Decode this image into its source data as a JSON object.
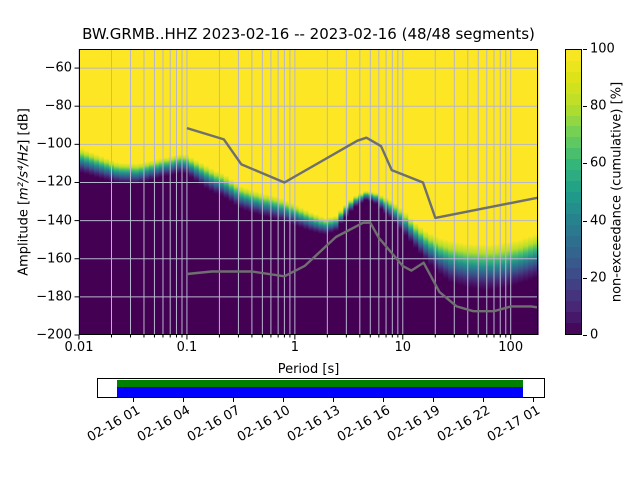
{
  "title": "BW.GRMB..HHZ   2023-02-16 -- 2023-02-16  (48/48 segments)",
  "axes": {
    "xlabel": "Period [s]",
    "ylabel_prefix": "Amplitude [",
    "ylabel_math": "m²/s⁴/Hz",
    "ylabel_suffix": "] [dB]"
  },
  "colorbar": {
    "label": "non-exceedance (cumulative) [%]",
    "ticks": [
      0,
      20,
      40,
      60,
      80,
      100
    ],
    "steps": 26
  },
  "timeline": {
    "tick_labels": [
      "02-16 01",
      "02-16 04",
      "02-16 07",
      "02-16 10",
      "02-16 13",
      "02-16 16",
      "02-16 19",
      "02-16 22",
      "02-17 01"
    ],
    "data_bar_color": "#008000",
    "extent_bar_color": "#0000ff"
  },
  "chart_data": {
    "type": "heatmap",
    "title": "BW.GRMB..HHZ   2023-02-16 -- 2023-02-16  (48/48 segments)",
    "xlabel": "Period [s]",
    "ylabel": "Amplitude [m²/s⁴/Hz] [dB]",
    "x_axis": {
      "scale": "log",
      "range": [
        0.01,
        179
      ],
      "major_ticks": [
        0.01,
        0.1,
        1,
        10,
        100
      ]
    },
    "y_axis": {
      "range": [
        -200,
        -50
      ],
      "major_ticks": [
        -200,
        -180,
        -160,
        -140,
        -120,
        -100,
        -80,
        -60
      ]
    },
    "grid": true,
    "colorbar_range": [
      0,
      100
    ],
    "colormap_anchors": [
      [
        0.0,
        "#440154"
      ],
      [
        0.1,
        "#482878"
      ],
      [
        0.2,
        "#3e4989"
      ],
      [
        0.3,
        "#31688e"
      ],
      [
        0.4,
        "#26828e"
      ],
      [
        0.5,
        "#1f9e89"
      ],
      [
        0.6,
        "#35b779"
      ],
      [
        0.7,
        "#6ece58"
      ],
      [
        0.8,
        "#b5de2b"
      ],
      [
        0.9,
        "#dde318"
      ],
      [
        1.0,
        "#fde725"
      ]
    ],
    "psd_distribution_note": "cumulative non-exceedance: 0% (dark) below band, 100% (yellow) above; points are [period_s, band_center_dB, band_halfwidth_dB]",
    "distribution_points": [
      [
        0.01,
        -108.0,
        6.5
      ],
      [
        0.015,
        -111.5,
        6.0
      ],
      [
        0.023,
        -115.0,
        5.5
      ],
      [
        0.035,
        -115.5,
        5.5
      ],
      [
        0.055,
        -112.5,
        5.0
      ],
      [
        0.08,
        -110.5,
        5.0
      ],
      [
        0.095,
        -109.8,
        5.0
      ],
      [
        0.14,
        -116.0,
        6.0
      ],
      [
        0.18,
        -119.5,
        6.0
      ],
      [
        0.22,
        -121.5,
        6.0
      ],
      [
        0.32,
        -128.0,
        6.0
      ],
      [
        0.5,
        -131.5,
        6.0
      ],
      [
        0.7,
        -133.5,
        6.0
      ],
      [
        1.0,
        -137.0,
        5.5
      ],
      [
        1.4,
        -140.5,
        5.0
      ],
      [
        1.9,
        -143.0,
        4.5
      ],
      [
        2.4,
        -141.5,
        4.0
      ],
      [
        2.8,
        -136.5,
        3.5
      ],
      [
        3.5,
        -130.5,
        3.0
      ],
      [
        4.5,
        -126.8,
        2.5
      ],
      [
        5.5,
        -127.8,
        2.8
      ],
      [
        6.5,
        -131.0,
        4.0
      ],
      [
        8.0,
        -134.5,
        5.0
      ],
      [
        10.0,
        -140.0,
        6.0
      ],
      [
        13.0,
        -147.5,
        6.5
      ],
      [
        17.0,
        -154.0,
        8.0
      ],
      [
        22.0,
        -158.5,
        9.5
      ],
      [
        28.0,
        -161.5,
        11.0
      ],
      [
        40.0,
        -163.5,
        11.5
      ],
      [
        60.0,
        -164.5,
        12.0
      ],
      [
        85.0,
        -163.5,
        12.0
      ],
      [
        120.0,
        -161.5,
        11.5
      ],
      [
        179.0,
        -158.0,
        11.5
      ]
    ],
    "noise_models": {
      "nhnm": [
        [
          0.1,
          -91.5
        ],
        [
          0.22,
          -97.4
        ],
        [
          0.32,
          -110.5
        ],
        [
          0.8,
          -120.0
        ],
        [
          3.8,
          -98.1
        ],
        [
          4.6,
          -96.5
        ],
        [
          6.3,
          -101.0
        ],
        [
          7.9,
          -113.5
        ],
        [
          15.4,
          -120.0
        ],
        [
          20.0,
          -138.6
        ],
        [
          179.0,
          -128.0
        ]
      ],
      "nlnm": [
        [
          0.1,
          -168.0
        ],
        [
          0.17,
          -166.7
        ],
        [
          0.4,
          -166.7
        ],
        [
          0.8,
          -169.2
        ],
        [
          1.24,
          -163.7
        ],
        [
          2.4,
          -148.6
        ],
        [
          4.3,
          -141.1
        ],
        [
          5.0,
          -141.1
        ],
        [
          6.0,
          -149.0
        ],
        [
          10.0,
          -163.8
        ],
        [
          12.0,
          -166.2
        ],
        [
          15.6,
          -162.1
        ],
        [
          21.9,
          -177.5
        ],
        [
          31.6,
          -185.0
        ],
        [
          45.0,
          -187.5
        ],
        [
          70.0,
          -187.5
        ],
        [
          101.0,
          -185.0
        ],
        [
          154.0,
          -185.0
        ],
        [
          179.0,
          -185.5
        ]
      ],
      "line_color": "#6f6f6f"
    }
  }
}
